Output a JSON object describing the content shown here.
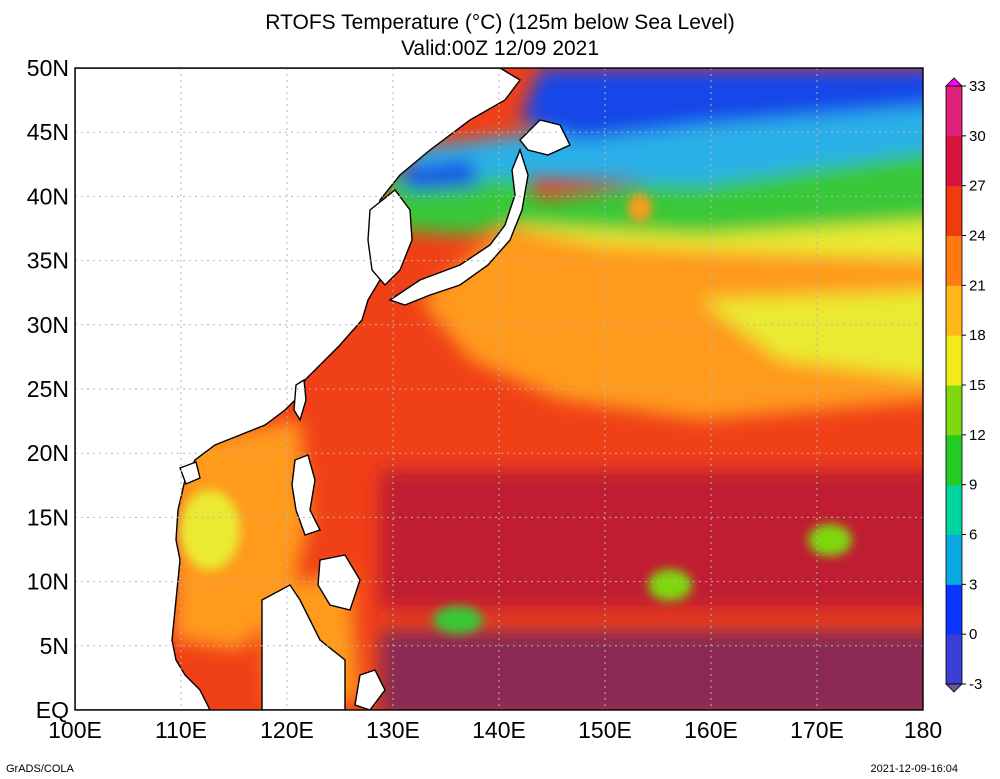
{
  "title": "RTOFS Temperature (°C) (125m below Sea Level)",
  "subtitle": "Valid:00Z 12/09 2021",
  "lat_labels": [
    "50N",
    "45N",
    "40N",
    "35N",
    "30N",
    "25N",
    "20N",
    "15N",
    "10N",
    "5N",
    "EQ"
  ],
  "lon_labels": [
    "100E",
    "110E",
    "120E",
    "130E",
    "140E",
    "150E",
    "160E",
    "170E",
    "180"
  ],
  "colorbar": {
    "labels": [
      "-3",
      "0",
      "3",
      "6",
      "9",
      "12",
      "15",
      "18",
      "21",
      "24",
      "27",
      "30",
      "33"
    ],
    "colors": [
      "#6a5a9a",
      "#3b3fd4",
      "#0a36ff",
      "#0aa8e0",
      "#00d4a0",
      "#22cc22",
      "#7ed810",
      "#f2ea1a",
      "#ffb818",
      "#ff7a10",
      "#f03a10",
      "#d8143c",
      "#e0207a",
      "#ff00ff"
    ]
  },
  "map_colors": {
    "land": "#ffffff",
    "coast": "#000000",
    "grid": "#b5b5b5",
    "band_cold": "#1846e8",
    "band_cool": "#2bb0e8",
    "band_green": "#38c838",
    "band_yellow": "#eaea30",
    "band_orange": "#ff9a1c",
    "band_red": "#f04018",
    "band_deep": "#c01e30",
    "band_purple": "#8a2a52"
  },
  "footer_left": "GrADS/COLA",
  "footer_right": "2021-12-09-16:04"
}
